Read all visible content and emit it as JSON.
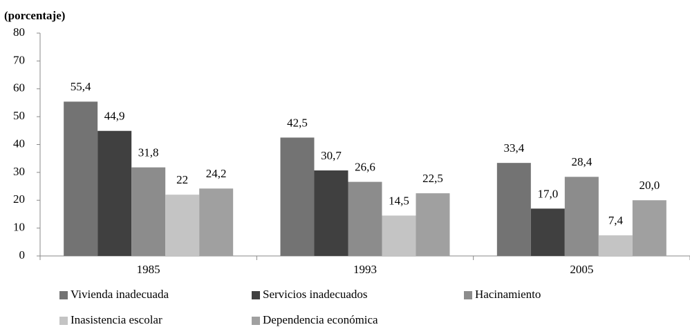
{
  "chart_data": {
    "type": "bar",
    "subtitle": "(porcentaje)",
    "categories": [
      "1985",
      "1993",
      "2005"
    ],
    "series": [
      {
        "name": "Vivienda inadecuada",
        "color": "#737373",
        "values": [
          55.4,
          42.5,
          33.4
        ],
        "value_labels": [
          "55,4",
          "42,5",
          "33,4"
        ]
      },
      {
        "name": "Servicios inadecuados",
        "color": "#404040",
        "values": [
          44.9,
          30.7,
          17.0
        ],
        "value_labels": [
          "44,9",
          "30,7",
          "17,0"
        ]
      },
      {
        "name": "Hacinamiento",
        "color": "#8c8c8c",
        "values": [
          31.8,
          26.6,
          28.4
        ],
        "value_labels": [
          "31,8",
          "26,6",
          "28,4"
        ]
      },
      {
        "name": "Inasistencia escolar",
        "color": "#c4c4c4",
        "values": [
          22,
          14.5,
          7.4
        ],
        "value_labels": [
          "22",
          "14,5",
          "7,4"
        ]
      },
      {
        "name": "Dependencia económica",
        "color": "#a0a0a0",
        "values": [
          24.2,
          22.5,
          20.0
        ],
        "value_labels": [
          "24,2",
          "22,5",
          "20,0"
        ]
      }
    ],
    "ylim": [
      0,
      80
    ],
    "yticks": [
      0,
      10,
      20,
      30,
      40,
      50,
      60,
      70,
      80
    ],
    "grid": false,
    "legend": "bottom"
  }
}
